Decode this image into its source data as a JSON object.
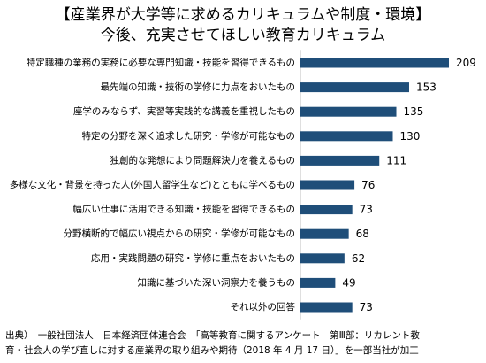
{
  "header": {
    "title_line1": "【産業界が大学等に求めるカリキュラムや制度・環境】",
    "title_line2": "今後、充実させてほしい教育カリキュラム"
  },
  "chart_data": {
    "type": "bar",
    "orientation": "horizontal",
    "categories": [
      "特定職種の業務の実務に必要な専門知識・技能を習得できるもの",
      "最先端の知識・技術の学修に力点をおいたもの",
      "座学のみならず、実習等実践的な講義を重視したもの",
      "特定の分野を深く追求した研究・学修が可能なもの",
      "独創的な発想により問題解決力を養えるもの",
      "多様な文化・背景を持った人(外国人留学生など)とともに学べるもの",
      "幅広い仕事に活用できる知識・技能を習得できるもの",
      "分野横断的で幅広い視点からの研究・学修が可能なもの",
      "応用・実践問題の研究・学修に重点をおいたもの",
      "知識に基づいた深い洞察力を養うもの",
      "それ以外の回答"
    ],
    "values": [
      209,
      153,
      135,
      130,
      111,
      76,
      73,
      68,
      62,
      49,
      73
    ],
    "xlim": [
      0,
      209
    ],
    "bar_color": "#1f4e79",
    "grid": false,
    "legend": "none"
  },
  "footer": {
    "source_line1": "出典）　一般社団法人　日本経済団体連合会　「高等教育に関するアンケート　第Ⅲ部：リカレント教",
    "source_line2": "育・社会人の学び直しに対する産業界の取り組みや期待（2018 年 4 月 17 日）」を一部当社が加工"
  }
}
